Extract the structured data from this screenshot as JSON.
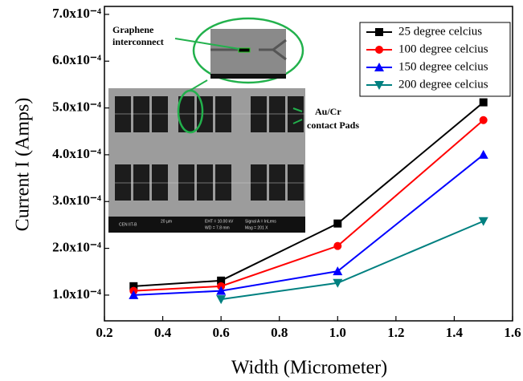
{
  "chart_data": {
    "type": "line",
    "x_label": "Width (Micrometer)",
    "y_label": "Current I (Amps)",
    "x": [
      0.3,
      0.6,
      1.0,
      1.5
    ],
    "series": [
      {
        "name": "25 degree celcius",
        "color": "#000000",
        "marker": "square",
        "values": [
          0.000119,
          0.000131,
          0.000253,
          0.000512
        ]
      },
      {
        "name": "100 degree celcius",
        "color": "#ff0000",
        "marker": "circle",
        "values": [
          0.000109,
          0.000119,
          0.000205,
          0.000474
        ]
      },
      {
        "name": "150 degree celcius",
        "color": "#0000ff",
        "marker": "triangle-up",
        "values": [
          0.0001,
          0.000109,
          0.000151,
          0.0004
        ]
      },
      {
        "name": "200 degree celcius",
        "color": "#008080",
        "marker": "triangle-down",
        "values": [
          null,
          9.1e-05,
          0.000126,
          0.000258
        ]
      }
    ],
    "xlim": [
      0.2,
      1.6
    ],
    "xticks": [
      0.2,
      0.4,
      0.6,
      0.8,
      {
        "value": 1,
        "label": "1.0"
      },
      1.2,
      1.4,
      1.6
    ],
    "ylim": [
      4.5e-05,
      0.000717
    ],
    "yticks": [
      {
        "value": 0.0001,
        "label": "1.0x10⁻⁴"
      },
      {
        "value": 0.0002,
        "label": "2.0x10⁻⁴"
      },
      {
        "value": 0.0003,
        "label": "3.0x10⁻⁴"
      },
      {
        "value": 0.0004,
        "label": "4.0x10⁻⁴"
      },
      {
        "value": 0.0005,
        "label": "5.0x10⁻⁴"
      },
      {
        "value": 0.0006,
        "label": "6.0x10⁻⁴"
      },
      {
        "value": 0.0007,
        "label": "7.0x10⁻⁴"
      }
    ],
    "legend": "upper right",
    "annotations": {
      "graphene_1": "Graphene",
      "graphene_2": "interconnect",
      "pads_1": "Au/Cr",
      "pads_2": "contact  Pads",
      "sem_labels": [
        "CEN IIT-B",
        "20 µm",
        "EHT = 10.00 kV",
        "WD = 7.8 mm",
        "Signal A = InLens",
        "Mag = 201 X"
      ]
    }
  }
}
